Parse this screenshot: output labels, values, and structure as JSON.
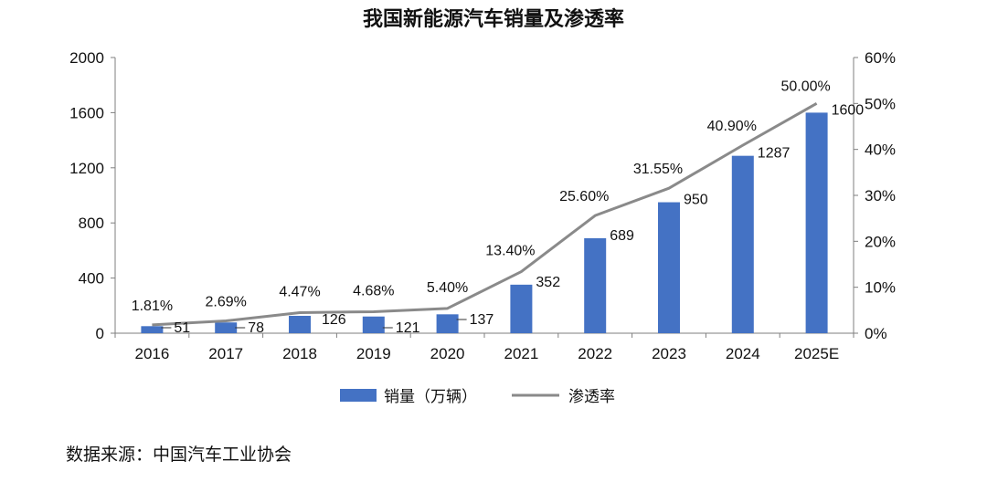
{
  "title": "我国新能源汽车销量及渗透率",
  "source": "数据来源：中国汽车工业协会",
  "colors": {
    "bar": "#4472C4",
    "line": "#8A8A8A",
    "axis": "#7F7F7F"
  },
  "chart_data": {
    "type": "bar",
    "title": "我国新能源汽车销量及渗透率",
    "categories": [
      "2016",
      "2017",
      "2018",
      "2019",
      "2020",
      "2021",
      "2022",
      "2023",
      "2024",
      "2025E"
    ],
    "series": [
      {
        "name": "销量（万辆）",
        "type": "bar",
        "axis": "left",
        "values": [
          51,
          78,
          126,
          121,
          137,
          352,
          689,
          950,
          1287,
          1600
        ],
        "labels": [
          "51",
          "78",
          "126",
          "121",
          "137",
          "352",
          "689",
          "950",
          "1287",
          "1600"
        ]
      },
      {
        "name": "渗透率",
        "type": "line",
        "axis": "right",
        "values": [
          1.81,
          2.69,
          4.47,
          4.68,
          5.4,
          13.4,
          25.6,
          31.55,
          40.9,
          50.0
        ],
        "labels": [
          "1.81%",
          "2.69%",
          "4.47%",
          "4.68%",
          "5.40%",
          "13.40%",
          "25.60%",
          "31.55%",
          "40.90%",
          "50.00%"
        ]
      }
    ],
    "y_left": {
      "min": 0,
      "max": 2000,
      "ticks": [
        "0",
        "400",
        "800",
        "1200",
        "1600",
        "2000"
      ]
    },
    "y_right": {
      "min": 0,
      "max": 60,
      "ticks": [
        "0%",
        "10%",
        "20%",
        "30%",
        "40%",
        "50%",
        "60%"
      ]
    },
    "legend": {
      "placement": "bottom",
      "items": [
        "销量（万辆）",
        "渗透率"
      ]
    }
  }
}
